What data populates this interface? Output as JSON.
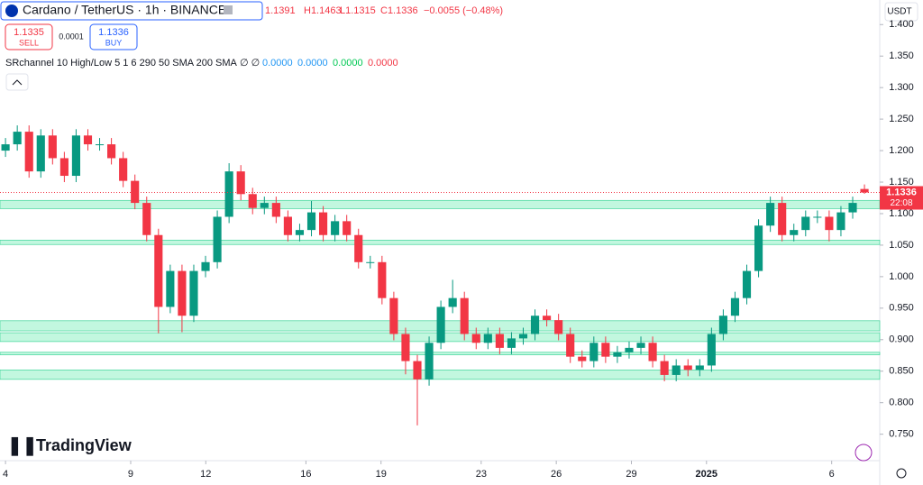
{
  "header": {
    "symbol": "Cardano / TetherUS · 1h · BINANCE",
    "ohlc": [
      "1.1391",
      "H1.1463",
      "L1.1315",
      "C1.1336",
      "−0.0055 (−0.48%)"
    ],
    "sell_price": "1.1335",
    "sell": "SELL",
    "spread": "0.0001",
    "buy_price": "1.1336",
    "buy": "BUY",
    "indicator": "SRchannel 10 High/Low 5 1 6 290 50 SMA 200 SMA",
    "indicator_flags": "∅ ∅",
    "indicator_values": [
      "0.0000",
      "0.0000",
      "0.0000",
      "0.0000"
    ],
    "currency": "USDT",
    "logo": "TradingView"
  },
  "chart_data": {
    "type": "candlestick",
    "up_color": "#089981",
    "down_color": "#f23645",
    "zone_color": "#8ff0c4",
    "x": [
      0,
      0.47,
      0.94,
      1.41,
      1.88,
      2.35,
      2.82,
      3.29,
      3.76,
      4.23,
      4.7,
      5.17,
      5.64,
      6.11,
      6.58,
      7.05,
      7.52,
      7.99,
      8.46,
      8.93,
      9.4,
      9.87,
      10.34,
      10.81,
      11.28,
      11.75,
      12.22,
      12.69,
      13.16,
      13.63,
      14.1,
      14.57,
      15.04,
      15.51,
      15.98,
      16.45,
      16.92,
      17.39,
      17.86,
      18.33,
      18.8,
      19.27,
      19.74,
      20.21,
      20.68,
      21.15,
      21.62,
      22.09,
      22.56,
      23.03,
      23.5,
      23.97,
      24.44,
      24.91,
      25.38,
      25.85,
      26.32,
      26.79,
      27.26,
      27.73,
      28.2,
      28.67,
      29.14,
      29.61,
      30.08,
      30.55,
      31.02,
      31.49,
      31.96,
      32.43,
      32.9,
      33.37,
      33.84,
      34.31
    ],
    "open": [
      1.2,
      1.21,
      1.23,
      1.167,
      1.224,
      1.188,
      1.16,
      1.224,
      1.21,
      1.21,
      1.188,
      1.152,
      1.117,
      1.066,
      0.952,
      1.009,
      0.938,
      1.009,
      1.023,
      1.095,
      1.167,
      1.131,
      1.109,
      1.117,
      1.095,
      1.066,
      1.074,
      1.102,
      1.066,
      1.088,
      1.066,
      1.023,
      1.023,
      0.966,
      0.909,
      0.866,
      0.837,
      0.895,
      0.952,
      0.966,
      0.909,
      0.895,
      0.909,
      0.887,
      0.902,
      0.909,
      0.938,
      0.931,
      0.909,
      0.873,
      0.866,
      0.895,
      0.873,
      0.88,
      0.887,
      0.895,
      0.866,
      0.844,
      0.859,
      0.852,
      0.859,
      0.909,
      0.938,
      0.966,
      1.009,
      1.081,
      1.117,
      1.066,
      1.074,
      1.095,
      1.095,
      1.074,
      1.102,
      1.1391
    ],
    "high": [
      1.22,
      1.24,
      1.24,
      1.234,
      1.234,
      1.198,
      1.234,
      1.234,
      1.22,
      1.22,
      1.198,
      1.162,
      1.127,
      1.076,
      1.019,
      1.019,
      1.019,
      1.033,
      1.105,
      1.18,
      1.177,
      1.141,
      1.127,
      1.127,
      1.105,
      1.084,
      1.12,
      1.112,
      1.098,
      1.098,
      1.076,
      1.033,
      1.033,
      0.976,
      0.919,
      0.876,
      0.905,
      0.962,
      0.995,
      0.976,
      0.919,
      0.919,
      0.919,
      0.912,
      0.919,
      0.948,
      0.948,
      0.941,
      0.919,
      0.883,
      0.905,
      0.905,
      0.89,
      0.897,
      0.905,
      0.905,
      0.876,
      0.869,
      0.869,
      0.869,
      0.919,
      0.948,
      0.976,
      1.019,
      1.091,
      1.127,
      1.127,
      1.084,
      1.105,
      1.105,
      1.105,
      1.112,
      1.127,
      1.1463
    ],
    "low": [
      1.19,
      1.2,
      1.157,
      1.157,
      1.178,
      1.15,
      1.15,
      1.2,
      1.2,
      1.178,
      1.142,
      1.107,
      1.056,
      0.91,
      0.942,
      0.912,
      0.928,
      0.999,
      1.013,
      1.085,
      1.121,
      1.099,
      1.099,
      1.085,
      1.056,
      1.056,
      1.064,
      1.056,
      1.056,
      1.056,
      1.013,
      1.013,
      0.956,
      0.899,
      0.845,
      0.764,
      0.827,
      0.885,
      0.942,
      0.899,
      0.885,
      0.885,
      0.877,
      0.877,
      0.892,
      0.899,
      0.921,
      0.899,
      0.863,
      0.856,
      0.856,
      0.863,
      0.863,
      0.87,
      0.877,
      0.856,
      0.834,
      0.834,
      0.842,
      0.842,
      0.849,
      0.899,
      0.928,
      0.956,
      0.999,
      1.071,
      1.056,
      1.056,
      1.064,
      1.085,
      1.056,
      1.064,
      1.092,
      1.1315
    ],
    "close": [
      1.21,
      1.23,
      1.167,
      1.224,
      1.188,
      1.16,
      1.224,
      1.21,
      1.21,
      1.188,
      1.152,
      1.117,
      1.066,
      0.952,
      1.009,
      0.938,
      1.009,
      1.023,
      1.095,
      1.167,
      1.131,
      1.109,
      1.117,
      1.095,
      1.066,
      1.074,
      1.102,
      1.066,
      1.088,
      1.066,
      1.023,
      1.023,
      0.966,
      0.909,
      0.866,
      0.837,
      0.895,
      0.952,
      0.966,
      0.909,
      0.895,
      0.909,
      0.887,
      0.902,
      0.909,
      0.938,
      0.931,
      0.909,
      0.873,
      0.866,
      0.895,
      0.873,
      0.88,
      0.887,
      0.895,
      0.866,
      0.844,
      0.859,
      0.852,
      0.859,
      0.909,
      0.938,
      0.966,
      1.009,
      1.081,
      1.117,
      1.066,
      1.074,
      1.095,
      1.095,
      1.074,
      1.102,
      1.117,
      1.1336
    ],
    "zones": [
      {
        "low": 1.108,
        "high": 1.121
      },
      {
        "low": 1.051,
        "high": 1.058
      },
      {
        "low": 0.914,
        "high": 0.93
      },
      {
        "low": 0.897,
        "high": 0.911
      },
      {
        "low": 0.876,
        "high": 0.88
      },
      {
        "low": 0.837,
        "high": 0.852
      }
    ],
    "last_price": 1.1336,
    "last_price_label": "1.1336",
    "countdown": "22:08",
    "xlim": [
      -0.22,
      34.92
    ],
    "ylim": [
      0.708,
      1.439
    ],
    "xticks": [
      {
        "value": 0,
        "label": "4"
      },
      {
        "value": 5,
        "label": "9"
      },
      {
        "value": 8,
        "label": "12"
      },
      {
        "value": 12,
        "label": "16"
      },
      {
        "value": 15,
        "label": "19"
      },
      {
        "value": 19,
        "label": "23"
      },
      {
        "value": 22,
        "label": "26"
      },
      {
        "value": 25,
        "label": "29"
      },
      {
        "value": 28,
        "label": "2025"
      },
      {
        "value": 33,
        "label": "6"
      }
    ],
    "yticks": [
      {
        "value": 0.75,
        "label": "0.750"
      },
      {
        "value": 0.8,
        "label": "0.800"
      },
      {
        "value": 0.85,
        "label": "0.850"
      },
      {
        "value": 0.9,
        "label": "0.900"
      },
      {
        "value": 0.95,
        "label": "0.950"
      },
      {
        "value": 1,
        "label": "1.000"
      },
      {
        "value": 1.05,
        "label": "1.050"
      },
      {
        "value": 1.1,
        "label": "1.100"
      },
      {
        "value": 1.15,
        "label": "1.150"
      },
      {
        "value": 1.2,
        "label": "1.200"
      },
      {
        "value": 1.25,
        "label": "1.250"
      },
      {
        "value": 1.3,
        "label": "1.300"
      },
      {
        "value": 1.35,
        "label": "1.350"
      },
      {
        "value": 1.4,
        "label": "1.400"
      }
    ]
  }
}
